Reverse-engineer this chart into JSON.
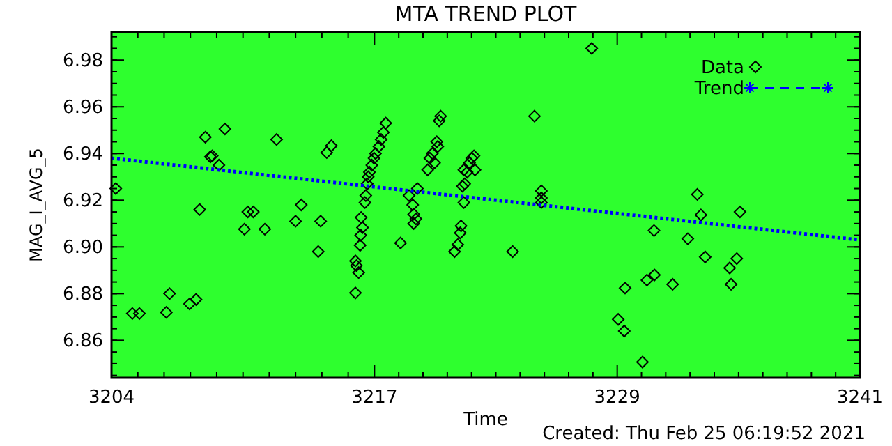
{
  "chart_data": {
    "type": "scatter",
    "title": "MTA TREND PLOT",
    "xlabel": "Time",
    "ylabel": "MAG_I_AVG_5",
    "annotations": [
      "Created: Thu Feb 25 06:19:52 2021"
    ],
    "xlim": [
      3204,
      3241
    ],
    "xticks": [
      3204,
      3217,
      3229,
      3241
    ],
    "ylim": [
      6.844,
      6.992
    ],
    "yticks": [
      6.86,
      6.88,
      {
        "value": 6.9,
        "label": "6.90"
      },
      6.92,
      6.94,
      6.96,
      6.98
    ],
    "legend": "top right",
    "grid": false,
    "series": [
      {
        "name": "Data",
        "color": "#000000",
        "marker": "diamond",
        "x": [
          3204.21,
          3205.03,
          3205.38,
          3206.71,
          3206.87,
          3207.86,
          3208.18,
          3208.36,
          3208.64,
          3208.89,
          3208.98,
          3209.31,
          3209.61,
          3210.57,
          3210.74,
          3211.01,
          3211.58,
          3212.16,
          3213.1,
          3213.38,
          3214.22,
          3214.34,
          3214.64,
          3214.87,
          3216.06,
          3216.06,
          3216.11,
          3216.22,
          3216.29,
          3216.32,
          3216.34,
          3216.41,
          3216.53,
          3216.57,
          3216.64,
          3216.69,
          3216.75,
          3216.87,
          3216.98,
          3217.05,
          3217.22,
          3217.33,
          3217.44,
          3217.56,
          3218.29,
          3218.71,
          3218.89,
          3218.94,
          3218.94,
          3219.05,
          3219.12,
          3219.63,
          3219.74,
          3219.86,
          3219.97,
          3220.08,
          3220.13,
          3220.2,
          3220.27,
          3220.96,
          3221.12,
          3221.24,
          3221.28,
          3221.35,
          3221.42,
          3221.42,
          3221.46,
          3221.58,
          3221.7,
          3221.81,
          3221.92,
          3221.97,
          3223.83,
          3224.91,
          3225.25,
          3225.25,
          3225.25,
          3227.74,
          3229.05,
          3229.35,
          3229.39,
          3230.25,
          3230.47,
          3230.82,
          3230.84,
          3231.74,
          3232.49,
          3232.96,
          3233.14,
          3233.35,
          3234.56,
          3234.63,
          3234.91,
          3235.07
        ],
        "values": [
          6.925,
          6.8715,
          6.8715,
          6.872,
          6.88,
          6.8756,
          6.8775,
          6.916,
          6.947,
          6.9386,
          6.939,
          6.935,
          6.9505,
          6.9076,
          6.915,
          6.915,
          6.9076,
          6.946,
          6.911,
          6.918,
          6.898,
          6.911,
          6.9404,
          6.9433,
          6.8803,
          6.894,
          6.892,
          6.889,
          6.9007,
          6.905,
          6.9126,
          6.9083,
          6.919,
          6.922,
          6.927,
          6.93,
          6.932,
          6.935,
          6.938,
          6.94,
          6.943,
          6.946,
          6.949,
          6.953,
          6.9017,
          6.922,
          6.918,
          6.914,
          6.91,
          6.912,
          6.925,
          6.933,
          6.938,
          6.94,
          6.936,
          6.945,
          6.943,
          6.954,
          6.956,
          6.898,
          6.901,
          6.906,
          6.909,
          6.926,
          6.933,
          6.919,
          6.927,
          6.932,
          6.936,
          6.938,
          6.939,
          6.933,
          6.898,
          6.956,
          6.924,
          6.921,
          6.919,
          6.985,
          6.869,
          6.864,
          6.8824,
          6.8507,
          6.8858,
          6.907,
          6.888,
          6.884,
          6.9035,
          6.9225,
          6.9137,
          6.8957,
          6.891,
          6.884,
          6.895,
          6.915
        ]
      },
      {
        "name": "Trend",
        "type": "line",
        "color": "#0000ff",
        "line_style": "dotted",
        "marker": "none",
        "x": [
          3204,
          3241
        ],
        "values": [
          6.938,
          6.903
        ]
      }
    ]
  }
}
